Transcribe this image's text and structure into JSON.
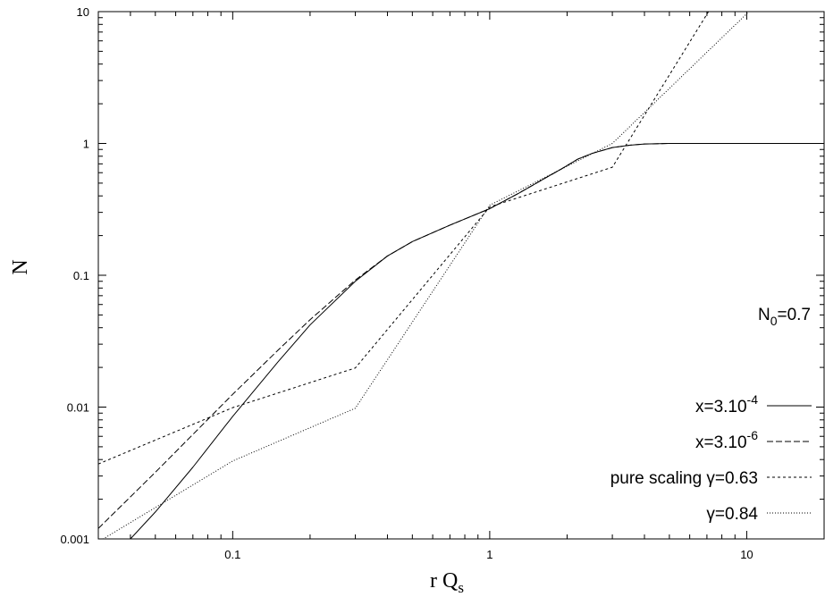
{
  "chart_data": {
    "type": "line",
    "xlabel": "r Q",
    "xlabel_sub": "s",
    "ylabel": "N",
    "x_scale": "log",
    "y_scale": "log",
    "xlim": [
      0.03,
      20
    ],
    "ylim": [
      0.001,
      10
    ],
    "x_ticks": [
      {
        "value": 0.1,
        "label": "0.1"
      },
      {
        "value": 1,
        "label": "1"
      },
      {
        "value": 10,
        "label": "10"
      }
    ],
    "y_ticks": [
      {
        "value": 0.001,
        "label": "0.001"
      },
      {
        "value": 0.01,
        "label": "0.01"
      },
      {
        "value": 0.1,
        "label": "0.1"
      },
      {
        "value": 1,
        "label": "1"
      },
      {
        "value": 10,
        "label": "10"
      }
    ],
    "grid": false,
    "legend_position": "bottom-right",
    "annotation": {
      "text": "N",
      "sub": "0",
      "suffix": "=0.7"
    },
    "series": [
      {
        "name": "x=3.10",
        "name_sup": "-4",
        "style": "solid",
        "x": [
          0.04,
          0.05,
          0.07,
          0.1,
          0.15,
          0.2,
          0.3,
          0.4,
          0.5,
          0.7,
          1.0,
          1.3,
          1.6,
          1.9,
          2.2,
          2.5,
          3.0,
          3.5,
          4.0,
          5.0,
          7.0,
          10.0,
          15.0,
          20.0
        ],
        "y": [
          0.001,
          0.0016,
          0.0035,
          0.0085,
          0.022,
          0.042,
          0.09,
          0.14,
          0.18,
          0.24,
          0.32,
          0.42,
          0.53,
          0.64,
          0.76,
          0.84,
          0.93,
          0.97,
          0.99,
          1.0,
          1.0,
          1.0,
          1.0,
          1.0
        ]
      },
      {
        "name": "x=3.10",
        "name_sup": "-6",
        "style": "dashed",
        "x": [
          0.03,
          0.05,
          0.07,
          0.1,
          0.15,
          0.2,
          0.3,
          0.4,
          0.5,
          0.7,
          1.0,
          1.3,
          1.6,
          1.9,
          2.2,
          2.5,
          3.0,
          3.5,
          4.0,
          5.0,
          7.0,
          10.0,
          15.0,
          20.0
        ],
        "y": [
          0.0012,
          0.0032,
          0.0062,
          0.0125,
          0.027,
          0.046,
          0.092,
          0.14,
          0.18,
          0.24,
          0.32,
          0.42,
          0.53,
          0.64,
          0.76,
          0.84,
          0.93,
          0.97,
          0.99,
          1.0,
          1.0,
          1.0,
          1.0,
          1.0
        ]
      },
      {
        "name": "pure scaling γ=0.63",
        "style": "short-dashed",
        "x": [
          0.03,
          0.1,
          0.3,
          1.0,
          3.0,
          7.1
        ],
        "y": [
          0.0037,
          0.0099,
          0.0198,
          0.33,
          0.66,
          10.0
        ]
      },
      {
        "name": "γ=0.84",
        "style": "dotted",
        "x": [
          0.03,
          0.1,
          0.3,
          1.0,
          3.0,
          10.2
        ],
        "y": [
          0.00095,
          0.0039,
          0.0098,
          0.34,
          1.0,
          10.0
        ]
      }
    ]
  }
}
